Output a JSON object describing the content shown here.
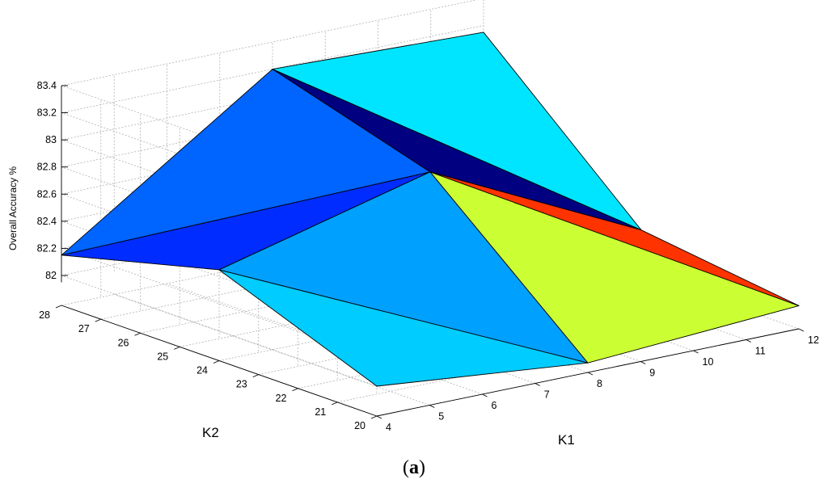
{
  "chart_data": {
    "type": "surface3d",
    "title": "",
    "xlabel": "K1",
    "ylabel": "K2",
    "zlabel": "Overall Accuracy %",
    "x_ticks": [
      "4",
      "5",
      "6",
      "7",
      "8",
      "9",
      "10",
      "11",
      "12"
    ],
    "y_ticks": [
      "20",
      "21",
      "22",
      "23",
      "24",
      "25",
      "26",
      "27",
      "28"
    ],
    "z_ticks": [
      "82",
      "82.2",
      "82.4",
      "82.6",
      "82.8",
      "83",
      "83.2",
      "83.4"
    ],
    "xlim": [
      4,
      12
    ],
    "ylim": [
      20,
      28
    ],
    "zlim": [
      81.95,
      83.4
    ],
    "grid": true,
    "colormap": "jet",
    "x": [
      4,
      8,
      12
    ],
    "y": [
      20,
      24,
      28
    ],
    "z": [
      [
        82.0,
        82.45,
        82.15
      ],
      [
        81.85,
        82.85,
        83.2
      ],
      [
        81.95,
        82.1,
        83.15
      ]
    ],
    "face_colors": [
      [
        "#00ccff",
        "#00a0ff"
      ],
      [
        "#002cff",
        "#0064ff"
      ],
      [
        "#ccff33",
        "#ff3300"
      ],
      [
        "#000080",
        "#00e5ff"
      ],
      [
        "#5cff99",
        "#ffd800"
      ],
      [
        "#dd0000",
        "#800000"
      ]
    ]
  },
  "caption": {
    "open": "(",
    "letter": "a",
    "close": ")"
  }
}
